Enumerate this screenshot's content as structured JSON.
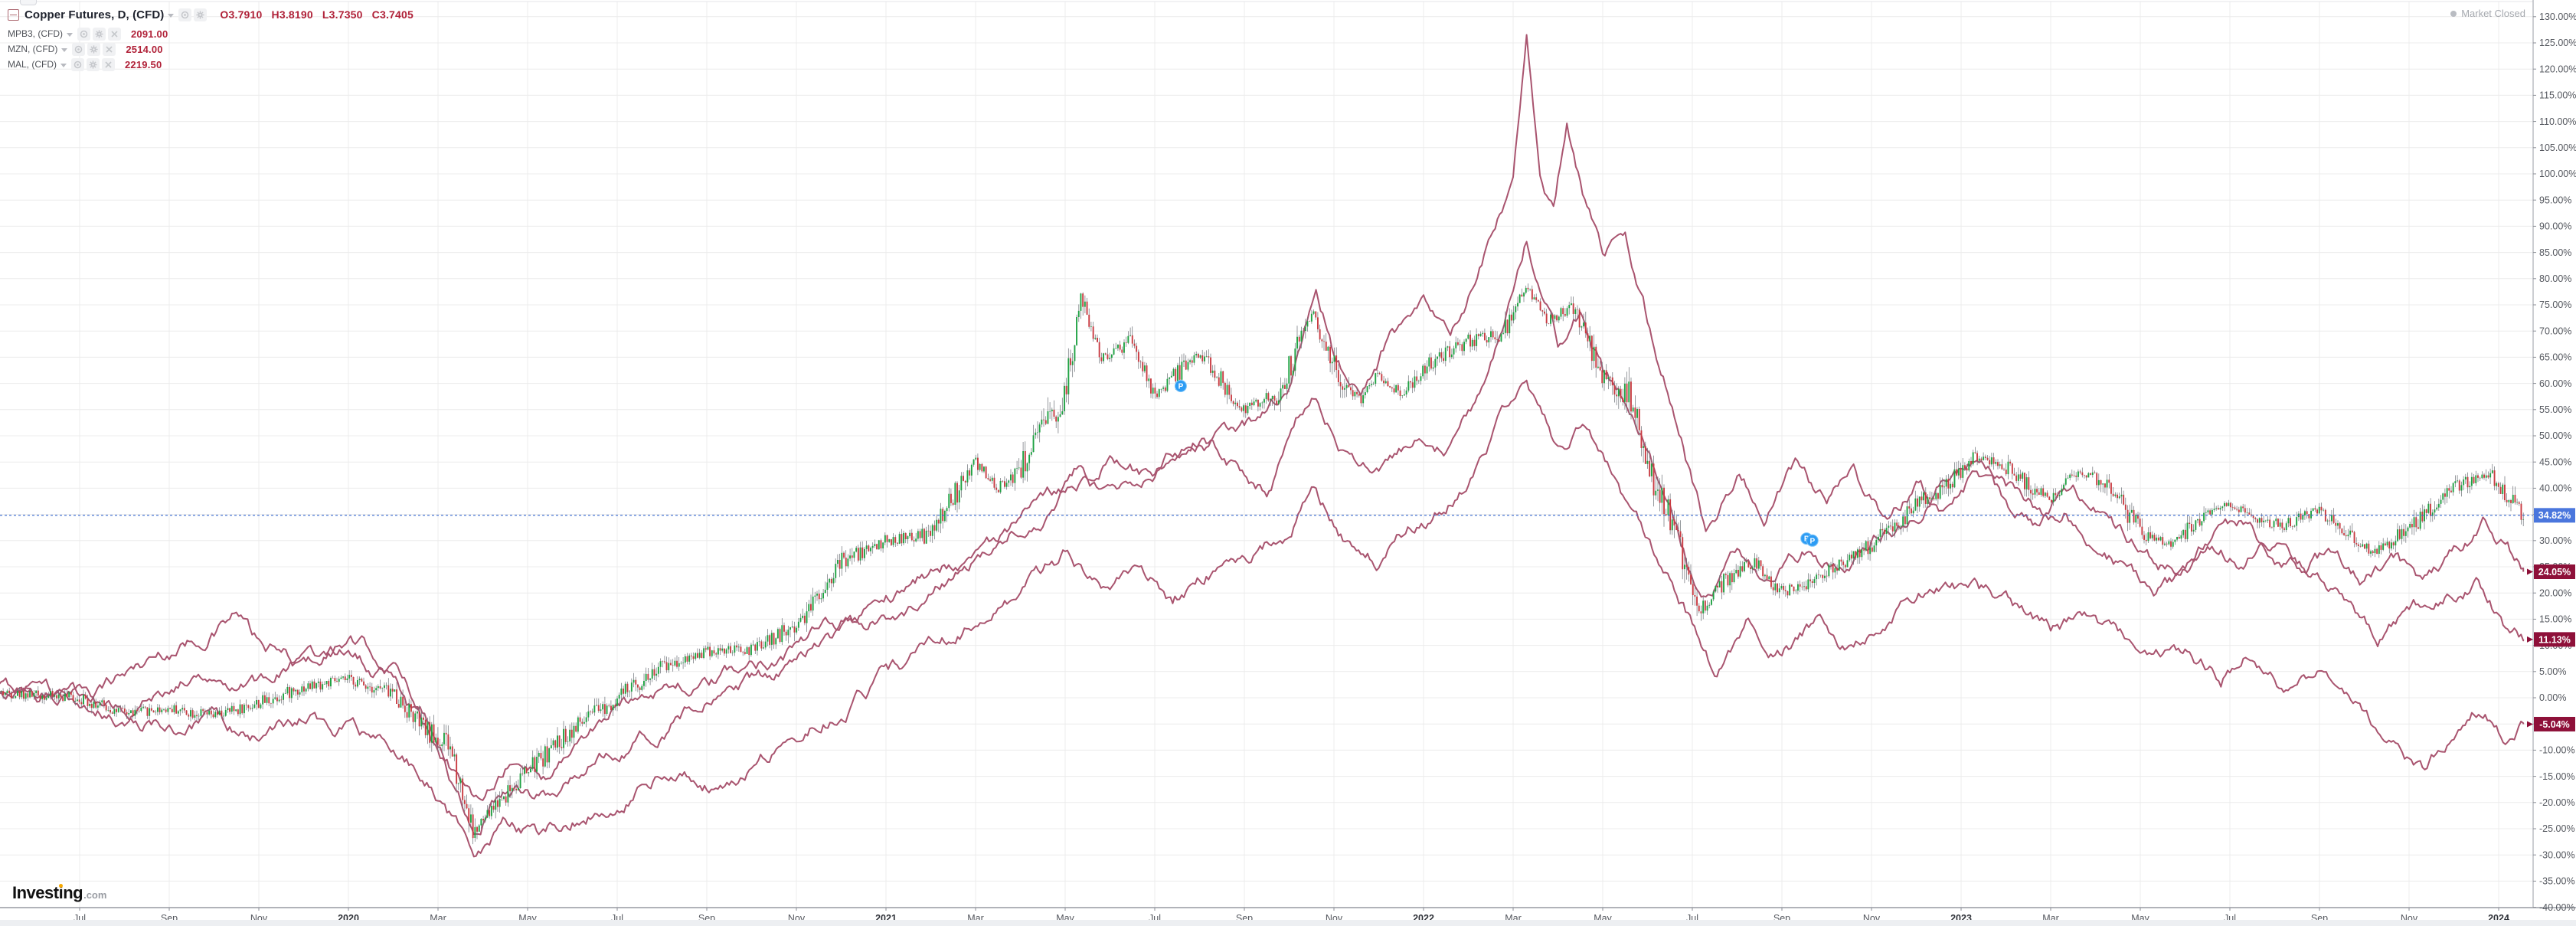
{
  "legend": {
    "main": {
      "title": "Copper Futures, D, (CFD)",
      "ohlc": {
        "o": "O3.7910",
        "h": "H3.8190",
        "l": "L3.7350",
        "c": "C3.7405"
      }
    },
    "compares": [
      {
        "name": "MPB3, (CFD)",
        "value": "2091.00"
      },
      {
        "name": "MZN, (CFD)",
        "value": "2514.00"
      },
      {
        "name": "MAL, (CFD)",
        "value": "2219.50"
      }
    ]
  },
  "status": {
    "market_closed": "Market Closed"
  },
  "watermark": {
    "brand": "Investing",
    "suffix": ".com"
  },
  "chart_data": {
    "type": "candlestick",
    "title": "Copper Futures, D, (CFD) with MPB3/MZN/MAL percent comparison",
    "x_axis": {
      "labels": [
        "Jul",
        "Sep",
        "Nov",
        "2020",
        "Mar",
        "May",
        "Jul",
        "Sep",
        "Nov",
        "2021",
        "Mar",
        "May",
        "Jul",
        "Sep",
        "Nov",
        "2022",
        "Mar",
        "May",
        "Jul",
        "Sep",
        "Nov",
        "2023",
        "Mar",
        "May",
        "Jul",
        "Sep",
        "Nov",
        "2024"
      ],
      "months_per_tick": 2
    },
    "y_axis": {
      "min": -40,
      "max": 133,
      "step": 5,
      "unit": "%",
      "tick_format": "0.00%"
    },
    "grid": true,
    "colors": {
      "candle_up": "#1fa243",
      "candle_down": "#c93b42",
      "wick": "#6b6f76",
      "compare_line": "#a9546f",
      "baseline": "#3566cf",
      "badge_main": "#4a76dd",
      "badge_compare": "#8e1039",
      "grid": "#ececec"
    },
    "baseline_pct": 34.82,
    "badges": [
      {
        "value": "34.82%",
        "pct": 34.82,
        "type": "main"
      },
      {
        "value": "24.05%",
        "pct": 24.05,
        "type": "compare"
      },
      {
        "value": "11.13%",
        "pct": 11.13,
        "type": "compare"
      },
      {
        "value": "-5.04%",
        "pct": -5.04,
        "type": "compare"
      }
    ],
    "markers": [
      {
        "m": 24.58,
        "pct": 59.5,
        "glyph": "P"
      },
      {
        "m": 38.55,
        "pct": 30.4,
        "glyph": "P"
      },
      {
        "m": 38.68,
        "pct": 30.0,
        "glyph": "P"
      }
    ],
    "main_series": {
      "name": "Copper Futures",
      "last_pct": 34.82,
      "keyframes": [
        [
          -1.8,
          1
        ],
        [
          0,
          0
        ],
        [
          1,
          -3
        ],
        [
          2,
          -2
        ],
        [
          3,
          -3.5
        ],
        [
          4,
          -1
        ],
        [
          5,
          2
        ],
        [
          6,
          3.5
        ],
        [
          7,
          1
        ],
        [
          7.7,
          -6
        ],
        [
          8.3,
          -10
        ],
        [
          8.8,
          -26
        ],
        [
          9.3,
          -20
        ],
        [
          10,
          -14
        ],
        [
          11,
          -6
        ],
        [
          12,
          0
        ],
        [
          13,
          6
        ],
        [
          14,
          9
        ],
        [
          15,
          9
        ],
        [
          16,
          14
        ],
        [
          17,
          26
        ],
        [
          18,
          30
        ],
        [
          19,
          31
        ],
        [
          20,
          45
        ],
        [
          20.5,
          40
        ],
        [
          21,
          44
        ],
        [
          22,
          58
        ],
        [
          22.35,
          76
        ],
        [
          22.8,
          65
        ],
        [
          23.5,
          68
        ],
        [
          24,
          57
        ],
        [
          24.5,
          62
        ],
        [
          25,
          66
        ],
        [
          25.5,
          60
        ],
        [
          26,
          55
        ],
        [
          26.8,
          58
        ],
        [
          27.5,
          74
        ],
        [
          28,
          63
        ],
        [
          28.6,
          57
        ],
        [
          29,
          62
        ],
        [
          29.5,
          58
        ],
        [
          30,
          63
        ],
        [
          31,
          68
        ],
        [
          31.8,
          70
        ],
        [
          32.3,
          78
        ],
        [
          32.8,
          72
        ],
        [
          33.3,
          75
        ],
        [
          34,
          62
        ],
        [
          34.6,
          58
        ],
        [
          35,
          44
        ],
        [
          35.6,
          32
        ],
        [
          36.2,
          17
        ],
        [
          36.8,
          23
        ],
        [
          37.4,
          26
        ],
        [
          38,
          20
        ],
        [
          38.6,
          22
        ],
        [
          39.2,
          25
        ],
        [
          39.8,
          28
        ],
        [
          40.4,
          32
        ],
        [
          41,
          37
        ],
        [
          41.6,
          40
        ],
        [
          42.3,
          46
        ],
        [
          43,
          44
        ],
        [
          43.6,
          40
        ],
        [
          44,
          38
        ],
        [
          44.6,
          43
        ],
        [
          45.2,
          41
        ],
        [
          46,
          32
        ],
        [
          46.6,
          29
        ],
        [
          47.2,
          33
        ],
        [
          48,
          37
        ],
        [
          48.6,
          34
        ],
        [
          49.2,
          33
        ],
        [
          50,
          36
        ],
        [
          50.6,
          31
        ],
        [
          51.2,
          28
        ],
        [
          52,
          32
        ],
        [
          52.6,
          37
        ],
        [
          53.2,
          41
        ],
        [
          53.8,
          43
        ],
        [
          54.2,
          38
        ],
        [
          54.55,
          34.8
        ]
      ]
    },
    "compare_series": [
      {
        "name": "MZN, (CFD)",
        "last_pct": 24.05,
        "keyframes": [
          [
            -1.8,
            2
          ],
          [
            0,
            0
          ],
          [
            1,
            5
          ],
          [
            2,
            9
          ],
          [
            3,
            13
          ],
          [
            3.5,
            16
          ],
          [
            4,
            10
          ],
          [
            5,
            6
          ],
          [
            6,
            11
          ],
          [
            7,
            6
          ],
          [
            7.8,
            -4
          ],
          [
            8.8,
            -20
          ],
          [
            9.5,
            -12
          ],
          [
            10.5,
            -15
          ],
          [
            11,
            -9
          ],
          [
            12,
            -2
          ],
          [
            13,
            3
          ],
          [
            14,
            2
          ],
          [
            15,
            6
          ],
          [
            16,
            10
          ],
          [
            17,
            14
          ],
          [
            18,
            19
          ],
          [
            19,
            24
          ],
          [
            20,
            28
          ],
          [
            21,
            33
          ],
          [
            22,
            40
          ],
          [
            23,
            46
          ],
          [
            24,
            41
          ],
          [
            25,
            47
          ],
          [
            26,
            51
          ],
          [
            27,
            58
          ],
          [
            27.6,
            77
          ],
          [
            28,
            66
          ],
          [
            28.6,
            58
          ],
          [
            29.3,
            70
          ],
          [
            30,
            74
          ],
          [
            30.6,
            68
          ],
          [
            31.3,
            82
          ],
          [
            32,
            98
          ],
          [
            32.3,
            124
          ],
          [
            32.6,
            100
          ],
          [
            32.9,
            93
          ],
          [
            33.2,
            110
          ],
          [
            33.6,
            96
          ],
          [
            34,
            84
          ],
          [
            34.5,
            88
          ],
          [
            35,
            72
          ],
          [
            35.6,
            55
          ],
          [
            36.3,
            32
          ],
          [
            37,
            42
          ],
          [
            37.6,
            36
          ],
          [
            38.3,
            44
          ],
          [
            39,
            36
          ],
          [
            39.6,
            42
          ],
          [
            40.3,
            34
          ],
          [
            41,
            40
          ],
          [
            41.6,
            36
          ],
          [
            42.3,
            42
          ],
          [
            43,
            36
          ],
          [
            43.7,
            32
          ],
          [
            44.3,
            36
          ],
          [
            45,
            30
          ],
          [
            45.7,
            25
          ],
          [
            46.3,
            18
          ],
          [
            47,
            24
          ],
          [
            47.7,
            28
          ],
          [
            48.3,
            26
          ],
          [
            49,
            30
          ],
          [
            49.7,
            26
          ],
          [
            50.3,
            28
          ],
          [
            51,
            22
          ],
          [
            51.7,
            26
          ],
          [
            52.3,
            22
          ],
          [
            53,
            28
          ],
          [
            53.7,
            33
          ],
          [
            54.2,
            29
          ],
          [
            54.55,
            24.05
          ]
        ]
      },
      {
        "name": "MPB3, (CFD)",
        "last_pct": 11.13,
        "keyframes": [
          [
            -1.8,
            0
          ],
          [
            0,
            0
          ],
          [
            1,
            -4
          ],
          [
            2,
            2
          ],
          [
            3,
            6
          ],
          [
            4,
            3
          ],
          [
            5,
            7
          ],
          [
            6,
            9
          ],
          [
            7,
            4
          ],
          [
            7.8,
            -8
          ],
          [
            8.8,
            -25
          ],
          [
            9.5,
            -17
          ],
          [
            10.5,
            -19
          ],
          [
            11.5,
            -12
          ],
          [
            12.5,
            -8
          ],
          [
            13.5,
            -3
          ],
          [
            14.5,
            1
          ],
          [
            15.5,
            4
          ],
          [
            16.5,
            9
          ],
          [
            17.5,
            13
          ],
          [
            18.5,
            17
          ],
          [
            19.5,
            23
          ],
          [
            20.5,
            30
          ],
          [
            21.5,
            36
          ],
          [
            22.3,
            44
          ],
          [
            23,
            38
          ],
          [
            24,
            44
          ],
          [
            25,
            50
          ],
          [
            25.8,
            44
          ],
          [
            26.5,
            40
          ],
          [
            27.5,
            58
          ],
          [
            28.2,
            48
          ],
          [
            29,
            44
          ],
          [
            29.8,
            50
          ],
          [
            30.5,
            47
          ],
          [
            31.3,
            58
          ],
          [
            32.3,
            88
          ],
          [
            33,
            68
          ],
          [
            33.5,
            74
          ],
          [
            34,
            62
          ],
          [
            34.6,
            56
          ],
          [
            35.3,
            42
          ],
          [
            36.2,
            18
          ],
          [
            37,
            28
          ],
          [
            37.8,
            22
          ],
          [
            38.5,
            28
          ],
          [
            39.3,
            24
          ],
          [
            40,
            30
          ],
          [
            40.8,
            34
          ],
          [
            41.5,
            40
          ],
          [
            42.3,
            45
          ],
          [
            43,
            40
          ],
          [
            43.8,
            36
          ],
          [
            44.5,
            40
          ],
          [
            45.3,
            34
          ],
          [
            46,
            28
          ],
          [
            46.8,
            24
          ],
          [
            47.5,
            30
          ],
          [
            48.3,
            34
          ],
          [
            49,
            28
          ],
          [
            49.8,
            24
          ],
          [
            50.5,
            20
          ],
          [
            51.3,
            12
          ],
          [
            52,
            16
          ],
          [
            52.8,
            20
          ],
          [
            53.5,
            23
          ],
          [
            54.1,
            14
          ],
          [
            54.55,
            11.13
          ]
        ]
      },
      {
        "name": "MAL, (CFD)",
        "last_pct": -5.04,
        "keyframes": [
          [
            -1.8,
            1
          ],
          [
            0,
            0
          ],
          [
            1,
            -3
          ],
          [
            2,
            -6
          ],
          [
            3,
            -4
          ],
          [
            4,
            -8
          ],
          [
            5,
            -4
          ],
          [
            6,
            -6
          ],
          [
            7,
            -11
          ],
          [
            7.8,
            -16
          ],
          [
            8.8,
            -30
          ],
          [
            9.5,
            -24
          ],
          [
            10.3,
            -27
          ],
          [
            11,
            -23
          ],
          [
            12,
            -19
          ],
          [
            13,
            -14
          ],
          [
            14,
            -16
          ],
          [
            15,
            -12
          ],
          [
            16,
            -7
          ],
          [
            17,
            -2
          ],
          [
            18,
            4
          ],
          [
            19,
            9
          ],
          [
            20,
            15
          ],
          [
            21,
            20
          ],
          [
            22,
            27
          ],
          [
            22.8,
            22
          ],
          [
            23.6,
            26
          ],
          [
            24.4,
            19
          ],
          [
            25.2,
            24
          ],
          [
            26,
            27
          ],
          [
            27,
            32
          ],
          [
            27.6,
            40
          ],
          [
            28.3,
            30
          ],
          [
            29,
            26
          ],
          [
            29.8,
            33
          ],
          [
            30.5,
            36
          ],
          [
            31.3,
            44
          ],
          [
            32.3,
            62
          ],
          [
            33,
            48
          ],
          [
            33.6,
            52
          ],
          [
            34.2,
            42
          ],
          [
            35,
            30
          ],
          [
            35.8,
            18
          ],
          [
            36.5,
            6
          ],
          [
            37.2,
            14
          ],
          [
            38,
            9
          ],
          [
            38.8,
            14
          ],
          [
            39.5,
            10
          ],
          [
            40.3,
            16
          ],
          [
            41,
            20
          ],
          [
            41.8,
            23
          ],
          [
            42.5,
            20
          ],
          [
            43.3,
            16
          ],
          [
            44,
            12
          ],
          [
            44.8,
            16
          ],
          [
            45.5,
            12
          ],
          [
            46.3,
            6
          ],
          [
            47,
            9
          ],
          [
            47.8,
            4
          ],
          [
            48.5,
            10
          ],
          [
            49.3,
            2
          ],
          [
            50,
            6
          ],
          [
            50.8,
            -2
          ],
          [
            51.5,
            -8
          ],
          [
            52.3,
            -13
          ],
          [
            53,
            -6
          ],
          [
            53.7,
            -1
          ],
          [
            54.2,
            -7
          ],
          [
            54.55,
            -5.04
          ]
        ]
      }
    ]
  }
}
